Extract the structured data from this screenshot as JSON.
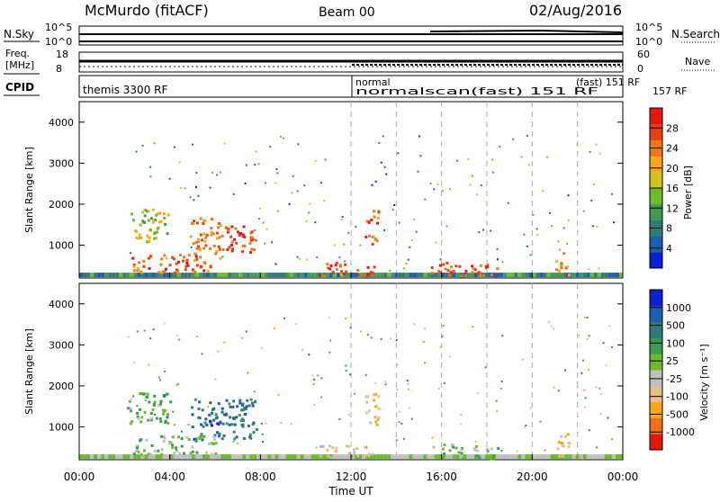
{
  "header": {
    "station": "McMurdo (fitACF)",
    "beam": "Beam 00",
    "date": "02/Aug/2016"
  },
  "strips": {
    "nsky_label": "N.Sky",
    "nsky_top": "10^5",
    "nsky_bottom": "10^0",
    "nsearch_label": "N.Search",
    "nsearch_top": "10^5",
    "nsearch_bottom": "10^0",
    "freq_label_1": "Freq.",
    "freq_label_2": "[MHz]",
    "freq_top": "18",
    "freq_bottom": "8",
    "nave_label": "Nave",
    "nave_top": "60",
    "nave_bottom": "0",
    "cpid_label": "CPID",
    "cpid_text_1": "themis 3300 RF",
    "cpid_text_2": "normal",
    "cpid_text_3": "normalscan(fast) 151 RF",
    "cpid_text_4": "(fast) 151 RF",
    "cpid_text_5": "157 RF"
  },
  "x_axis": {
    "label": "Time UT",
    "ticks": [
      "00:00",
      "04:00",
      "08:00",
      "12:00",
      "16:00",
      "20:00",
      "00:00"
    ]
  },
  "colors": {
    "power_scale": [
      "#0b1fd6",
      "#1a5fb0",
      "#2f7b78",
      "#3d9a52",
      "#6cbb2c",
      "#d4c31c",
      "#f7a81a",
      "#f07717",
      "#e8400f",
      "#e4170f"
    ],
    "velocity_scale": [
      "#e4170f",
      "#f0701a",
      "#f7a81a",
      "#e6c08a",
      "#c0c0c0",
      "#6cbb2c",
      "#3d9a52",
      "#2f7b78",
      "#1a5fb0",
      "#0b1fd6"
    ]
  },
  "chart_data": [
    {
      "type": "heatmap",
      "name": "power",
      "ylabel": "Slant Range [km]",
      "yticks": [
        "1000",
        "2000",
        "3000",
        "4000"
      ],
      "ylim": [
        200,
        4500
      ],
      "x_range_hours": [
        0,
        24
      ],
      "colorbar_label": "Power [dB]",
      "colorbar_ticks": [
        "4",
        "8",
        "12",
        "16",
        "20",
        "24",
        "28"
      ],
      "colorbar_range": [
        0,
        30
      ],
      "regions": [
        {
          "t": [
            2.1,
            3.9
          ],
          "r": [
            1100,
            1900
          ],
          "level": 16
        },
        {
          "t": [
            4.8,
            6.3
          ],
          "r": [
            700,
            1700
          ],
          "level": 22
        },
        {
          "t": [
            6.3,
            7.8
          ],
          "r": [
            800,
            1500
          ],
          "level": 26
        },
        {
          "t": [
            2.3,
            5.8
          ],
          "r": [
            350,
            800
          ],
          "level": 24
        },
        {
          "t": [
            12.6,
            13.2
          ],
          "r": [
            1000,
            1900
          ],
          "level": 24
        },
        {
          "t": [
            10.5,
            13.0
          ],
          "r": [
            250,
            600
          ],
          "level": 24
        },
        {
          "t": [
            15.5,
            18.5
          ],
          "r": [
            250,
            600
          ],
          "level": 26
        },
        {
          "t": [
            21.0,
            21.6
          ],
          "r": [
            300,
            900
          ],
          "level": 20
        }
      ]
    },
    {
      "type": "heatmap",
      "name": "velocity",
      "ylabel": "Slant Range [km]",
      "yticks": [
        "1000",
        "2000",
        "3000",
        "4000"
      ],
      "ylim": [
        200,
        4500
      ],
      "x_range_hours": [
        0,
        24
      ],
      "colorbar_label": "Velocity [m s⁻¹]",
      "colorbar_ticks": [
        "-1000",
        "-500",
        "-100",
        "-25",
        "25",
        "100",
        "500",
        "1000"
      ],
      "colorbar_range": [
        -1200,
        1200
      ],
      "regions": [
        {
          "t": [
            2.1,
            4.0
          ],
          "r": [
            1100,
            1900
          ],
          "level": 200
        },
        {
          "t": [
            4.8,
            7.8
          ],
          "r": [
            700,
            1700
          ],
          "level": 700
        },
        {
          "t": [
            2.3,
            6.0
          ],
          "r": [
            350,
            800
          ],
          "level": 80
        },
        {
          "t": [
            12.6,
            13.2
          ],
          "r": [
            1000,
            1900
          ],
          "level": -300
        },
        {
          "t": [
            10.5,
            13.0
          ],
          "r": [
            250,
            600
          ],
          "level": -200
        },
        {
          "t": [
            15.5,
            18.5
          ],
          "r": [
            250,
            600
          ],
          "level": 120
        },
        {
          "t": [
            21.0,
            21.6
          ],
          "r": [
            300,
            900
          ],
          "level": -500
        }
      ]
    }
  ]
}
